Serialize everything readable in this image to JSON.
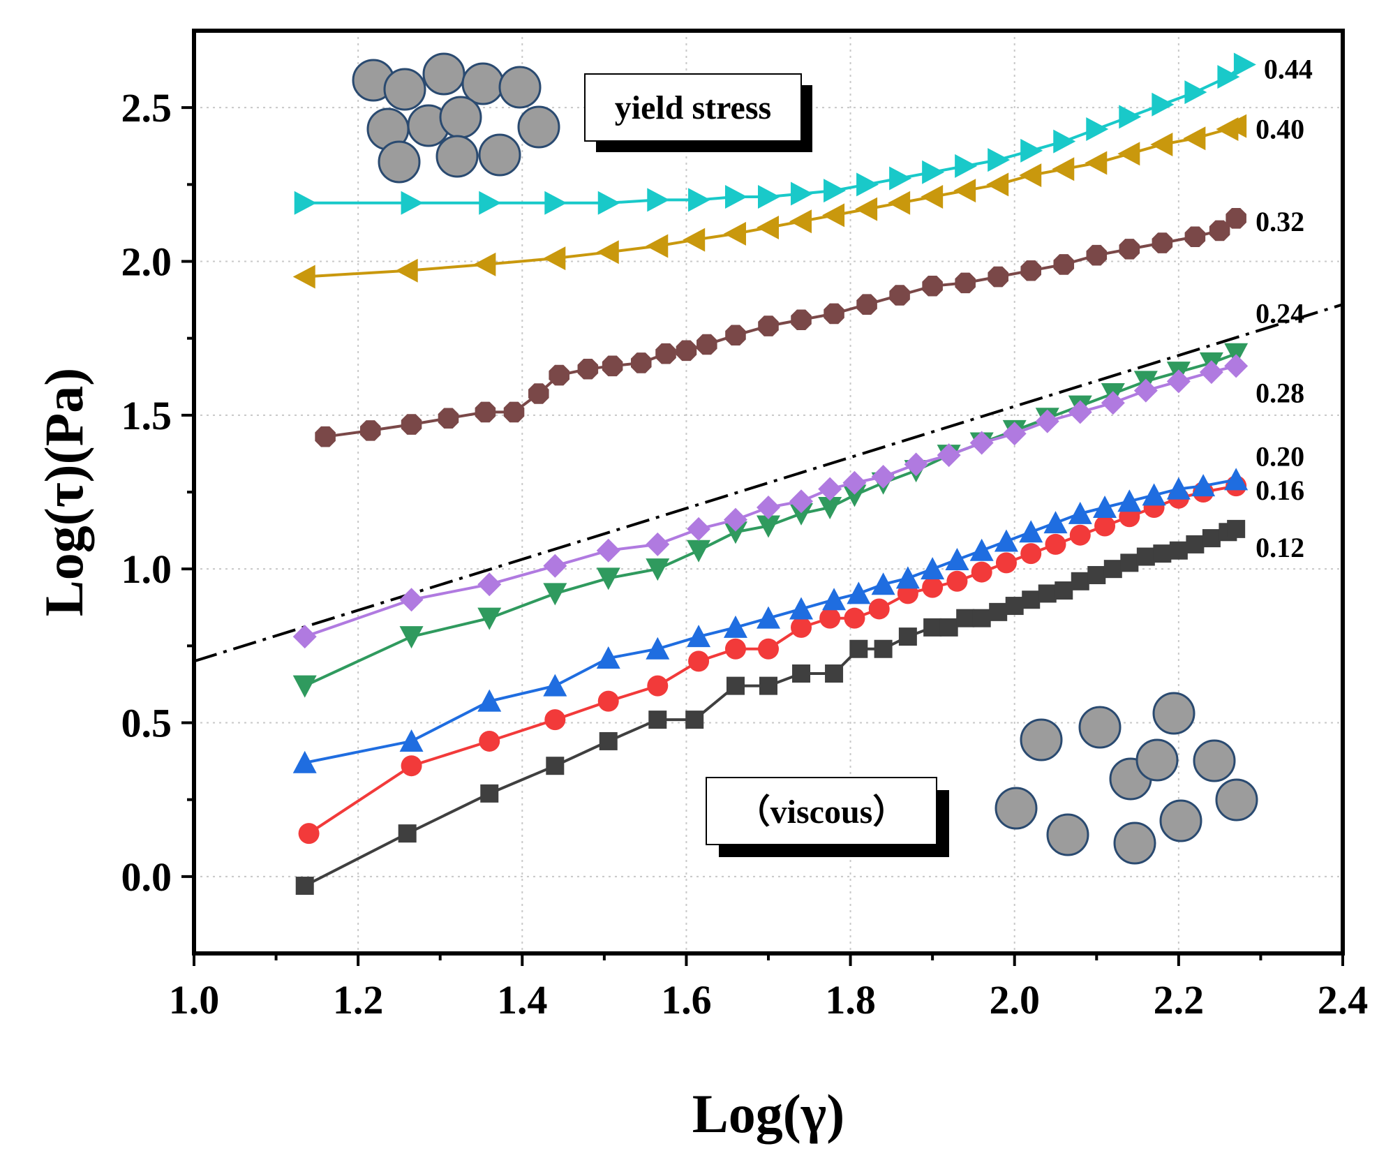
{
  "chart_data": {
    "type": "line",
    "title": "",
    "xlabel": "Log(γ)",
    "ylabel": "Log(τ)(Pa)",
    "xlim": [
      1.0,
      2.4
    ],
    "ylim": [
      -0.25,
      2.75
    ],
    "xticks": [
      "1.0",
      "1.2",
      "1.4",
      "1.6",
      "1.8",
      "2.0",
      "2.2",
      "2.4"
    ],
    "yticks": [
      "0.0",
      "0.5",
      "1.0",
      "1.5",
      "2.0",
      "2.5"
    ],
    "grid": true,
    "reference_line": {
      "style": "dash-dot",
      "color": "#000000",
      "x": [
        1.0,
        2.4
      ],
      "y": [
        0.7,
        1.86
      ]
    },
    "annotations": {
      "yield_box": "yield stress",
      "viscous_box": "（viscous）"
    },
    "series": [
      {
        "name": "0.12",
        "color": "#3f3f3f",
        "marker": "square",
        "points": [
          [
            1.135,
            -0.03
          ],
          [
            1.26,
            0.14
          ],
          [
            1.36,
            0.27
          ],
          [
            1.44,
            0.36
          ],
          [
            1.505,
            0.44
          ],
          [
            1.565,
            0.51
          ],
          [
            1.61,
            0.51
          ],
          [
            1.66,
            0.62
          ],
          [
            1.7,
            0.62
          ],
          [
            1.74,
            0.66
          ],
          [
            1.78,
            0.66
          ],
          [
            1.81,
            0.74
          ],
          [
            1.84,
            0.74
          ],
          [
            1.87,
            0.78
          ],
          [
            1.9,
            0.81
          ],
          [
            1.92,
            0.81
          ],
          [
            1.94,
            0.84
          ],
          [
            1.96,
            0.84
          ],
          [
            1.98,
            0.86
          ],
          [
            2.0,
            0.88
          ],
          [
            2.02,
            0.9
          ],
          [
            2.04,
            0.92
          ],
          [
            2.06,
            0.93
          ],
          [
            2.08,
            0.96
          ],
          [
            2.1,
            0.98
          ],
          [
            2.12,
            1.0
          ],
          [
            2.14,
            1.02
          ],
          [
            2.16,
            1.04
          ],
          [
            2.18,
            1.05
          ],
          [
            2.2,
            1.06
          ],
          [
            2.22,
            1.08
          ],
          [
            2.24,
            1.1
          ],
          [
            2.26,
            1.12
          ],
          [
            2.27,
            1.13
          ]
        ]
      },
      {
        "name": "0.16",
        "color": "#f23a3a",
        "marker": "circle",
        "points": [
          [
            1.14,
            0.14
          ],
          [
            1.265,
            0.36
          ],
          [
            1.36,
            0.44
          ],
          [
            1.44,
            0.51
          ],
          [
            1.505,
            0.57
          ],
          [
            1.565,
            0.62
          ],
          [
            1.615,
            0.7
          ],
          [
            1.66,
            0.74
          ],
          [
            1.7,
            0.74
          ],
          [
            1.74,
            0.81
          ],
          [
            1.775,
            0.84
          ],
          [
            1.805,
            0.84
          ],
          [
            1.835,
            0.87
          ],
          [
            1.87,
            0.92
          ],
          [
            1.9,
            0.94
          ],
          [
            1.93,
            0.96
          ],
          [
            1.96,
            0.99
          ],
          [
            1.99,
            1.02
          ],
          [
            2.02,
            1.05
          ],
          [
            2.05,
            1.08
          ],
          [
            2.08,
            1.11
          ],
          [
            2.11,
            1.14
          ],
          [
            2.14,
            1.17
          ],
          [
            2.17,
            1.2
          ],
          [
            2.2,
            1.23
          ],
          [
            2.23,
            1.25
          ],
          [
            2.27,
            1.27
          ]
        ]
      },
      {
        "name": "0.20",
        "color": "#1f6de0",
        "marker": "triangle-up",
        "points": [
          [
            1.135,
            0.37
          ],
          [
            1.265,
            0.44
          ],
          [
            1.36,
            0.57
          ],
          [
            1.44,
            0.62
          ],
          [
            1.505,
            0.71
          ],
          [
            1.565,
            0.74
          ],
          [
            1.615,
            0.78
          ],
          [
            1.66,
            0.81
          ],
          [
            1.7,
            0.84
          ],
          [
            1.74,
            0.87
          ],
          [
            1.78,
            0.9
          ],
          [
            1.81,
            0.92
          ],
          [
            1.84,
            0.95
          ],
          [
            1.87,
            0.97
          ],
          [
            1.9,
            1.0
          ],
          [
            1.93,
            1.03
          ],
          [
            1.96,
            1.06
          ],
          [
            1.99,
            1.09
          ],
          [
            2.02,
            1.12
          ],
          [
            2.05,
            1.15
          ],
          [
            2.08,
            1.18
          ],
          [
            2.11,
            1.2
          ],
          [
            2.14,
            1.22
          ],
          [
            2.17,
            1.24
          ],
          [
            2.2,
            1.26
          ],
          [
            2.23,
            1.27
          ],
          [
            2.27,
            1.29
          ]
        ]
      },
      {
        "name": "0.24",
        "color": "#2f9a5e",
        "marker": "triangle-down",
        "points": [
          [
            1.135,
            0.62
          ],
          [
            1.265,
            0.78
          ],
          [
            1.36,
            0.84
          ],
          [
            1.44,
            0.92
          ],
          [
            1.505,
            0.97
          ],
          [
            1.565,
            1.0
          ],
          [
            1.615,
            1.06
          ],
          [
            1.66,
            1.12
          ],
          [
            1.7,
            1.14
          ],
          [
            1.74,
            1.18
          ],
          [
            1.775,
            1.2
          ],
          [
            1.805,
            1.24
          ],
          [
            1.84,
            1.28
          ],
          [
            1.88,
            1.32
          ],
          [
            1.92,
            1.37
          ],
          [
            1.96,
            1.41
          ],
          [
            2.0,
            1.45
          ],
          [
            2.04,
            1.49
          ],
          [
            2.08,
            1.53
          ],
          [
            2.12,
            1.57
          ],
          [
            2.16,
            1.61
          ],
          [
            2.2,
            1.64
          ],
          [
            2.24,
            1.67
          ],
          [
            2.27,
            1.7
          ]
        ]
      },
      {
        "name": "0.28",
        "color": "#b07ae0",
        "marker": "diamond",
        "points": [
          [
            1.135,
            0.78
          ],
          [
            1.265,
            0.9
          ],
          [
            1.36,
            0.95
          ],
          [
            1.44,
            1.01
          ],
          [
            1.505,
            1.06
          ],
          [
            1.565,
            1.08
          ],
          [
            1.615,
            1.13
          ],
          [
            1.66,
            1.16
          ],
          [
            1.7,
            1.2
          ],
          [
            1.74,
            1.22
          ],
          [
            1.775,
            1.26
          ],
          [
            1.805,
            1.28
          ],
          [
            1.84,
            1.3
          ],
          [
            1.88,
            1.34
          ],
          [
            1.92,
            1.37
          ],
          [
            1.96,
            1.41
          ],
          [
            2.0,
            1.44
          ],
          [
            2.04,
            1.48
          ],
          [
            2.08,
            1.51
          ],
          [
            2.12,
            1.54
          ],
          [
            2.16,
            1.58
          ],
          [
            2.2,
            1.61
          ],
          [
            2.24,
            1.64
          ],
          [
            2.27,
            1.66
          ]
        ]
      },
      {
        "name": "0.32",
        "color": "#7a4848",
        "marker": "octagon",
        "points": [
          [
            1.16,
            1.43
          ],
          [
            1.215,
            1.45
          ],
          [
            1.265,
            1.47
          ],
          [
            1.31,
            1.49
          ],
          [
            1.355,
            1.51
          ],
          [
            1.39,
            1.51
          ],
          [
            1.42,
            1.57
          ],
          [
            1.445,
            1.63
          ],
          [
            1.48,
            1.65
          ],
          [
            1.51,
            1.66
          ],
          [
            1.545,
            1.67
          ],
          [
            1.575,
            1.7
          ],
          [
            1.6,
            1.71
          ],
          [
            1.625,
            1.73
          ],
          [
            1.66,
            1.76
          ],
          [
            1.7,
            1.79
          ],
          [
            1.74,
            1.81
          ],
          [
            1.78,
            1.83
          ],
          [
            1.82,
            1.86
          ],
          [
            1.86,
            1.89
          ],
          [
            1.9,
            1.92
          ],
          [
            1.94,
            1.93
          ],
          [
            1.98,
            1.95
          ],
          [
            2.02,
            1.97
          ],
          [
            2.06,
            1.99
          ],
          [
            2.1,
            2.02
          ],
          [
            2.14,
            2.04
          ],
          [
            2.18,
            2.06
          ],
          [
            2.22,
            2.08
          ],
          [
            2.25,
            2.1
          ],
          [
            2.27,
            2.14
          ]
        ]
      },
      {
        "name": "0.40",
        "color": "#c9980d",
        "marker": "triangle-left",
        "points": [
          [
            1.135,
            1.95
          ],
          [
            1.26,
            1.97
          ],
          [
            1.355,
            1.99
          ],
          [
            1.44,
            2.01
          ],
          [
            1.505,
            2.03
          ],
          [
            1.565,
            2.05
          ],
          [
            1.61,
            2.07
          ],
          [
            1.66,
            2.09
          ],
          [
            1.7,
            2.11
          ],
          [
            1.74,
            2.13
          ],
          [
            1.78,
            2.15
          ],
          [
            1.82,
            2.17
          ],
          [
            1.86,
            2.19
          ],
          [
            1.9,
            2.21
          ],
          [
            1.94,
            2.23
          ],
          [
            1.98,
            2.25
          ],
          [
            2.02,
            2.28
          ],
          [
            2.06,
            2.3
          ],
          [
            2.1,
            2.32
          ],
          [
            2.14,
            2.35
          ],
          [
            2.18,
            2.38
          ],
          [
            2.22,
            2.4
          ],
          [
            2.26,
            2.43
          ],
          [
            2.27,
            2.44
          ]
        ]
      },
      {
        "name": "0.44",
        "color": "#19c9c9",
        "marker": "triangle-right",
        "points": [
          [
            1.135,
            2.19
          ],
          [
            1.265,
            2.19
          ],
          [
            1.36,
            2.19
          ],
          [
            1.44,
            2.19
          ],
          [
            1.505,
            2.19
          ],
          [
            1.565,
            2.2
          ],
          [
            1.615,
            2.2
          ],
          [
            1.66,
            2.21
          ],
          [
            1.7,
            2.21
          ],
          [
            1.74,
            2.22
          ],
          [
            1.78,
            2.23
          ],
          [
            1.82,
            2.25
          ],
          [
            1.86,
            2.27
          ],
          [
            1.9,
            2.29
          ],
          [
            1.94,
            2.31
          ],
          [
            1.98,
            2.33
          ],
          [
            2.02,
            2.36
          ],
          [
            2.06,
            2.39
          ],
          [
            2.1,
            2.43
          ],
          [
            2.14,
            2.47
          ],
          [
            2.18,
            2.51
          ],
          [
            2.22,
            2.55
          ],
          [
            2.26,
            2.6
          ],
          [
            2.28,
            2.64
          ]
        ]
      }
    ]
  }
}
